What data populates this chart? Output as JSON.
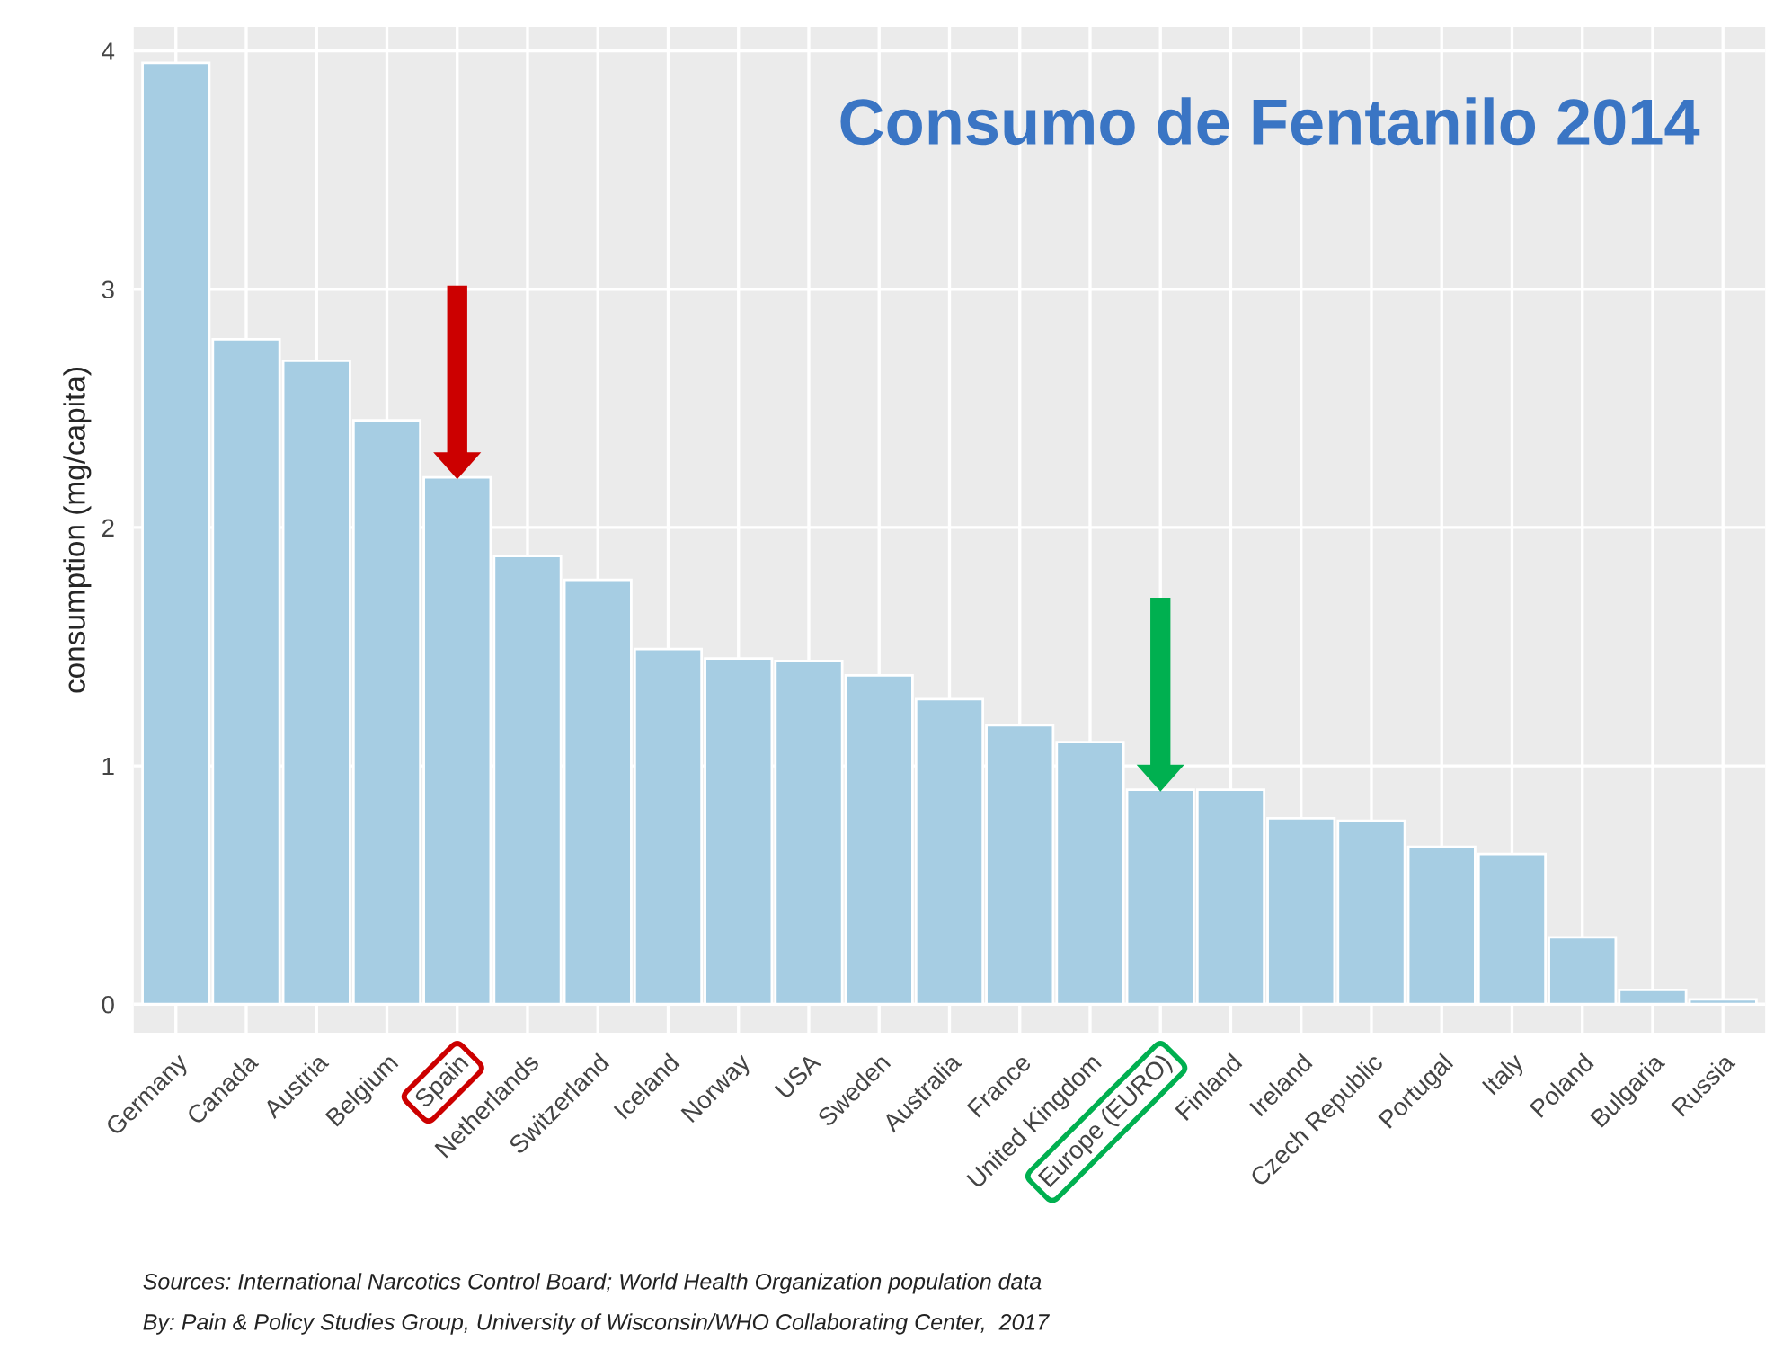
{
  "chart_data": {
    "type": "bar",
    "title": "Consumo de Fentanilo 2014",
    "ylabel": "consumption (mg/capita)",
    "categories": [
      "Germany",
      "Canada",
      "Austria",
      "Belgium",
      "Spain",
      "Netherlands",
      "Switzerland",
      "Iceland",
      "Norway",
      "USA",
      "Sweden",
      "Australia",
      "France",
      "United Kingdom",
      "Europe (EURO)",
      "Finland",
      "Ireland",
      "Czech Republic",
      "Portugal",
      "Italy",
      "Poland",
      "Bulgaria",
      "Russia"
    ],
    "values": [
      3.95,
      2.79,
      2.7,
      2.45,
      2.21,
      1.88,
      1.78,
      1.49,
      1.45,
      1.44,
      1.38,
      1.28,
      1.17,
      1.1,
      0.9,
      0.9,
      0.78,
      0.77,
      0.66,
      0.63,
      0.28,
      0.06,
      0.02
    ],
    "color": "#a6cde3",
    "ylim": [
      -0.12,
      4.1
    ],
    "yticks": [
      0,
      1,
      2,
      3,
      4
    ],
    "grid": true,
    "annotations": [
      "Sources: International Narcotics Control Board; World Health Organization population data",
      "By: Pain & Policy Studies Group, University of Wisconsin/WHO Collaborating Center,  2017"
    ]
  }
}
